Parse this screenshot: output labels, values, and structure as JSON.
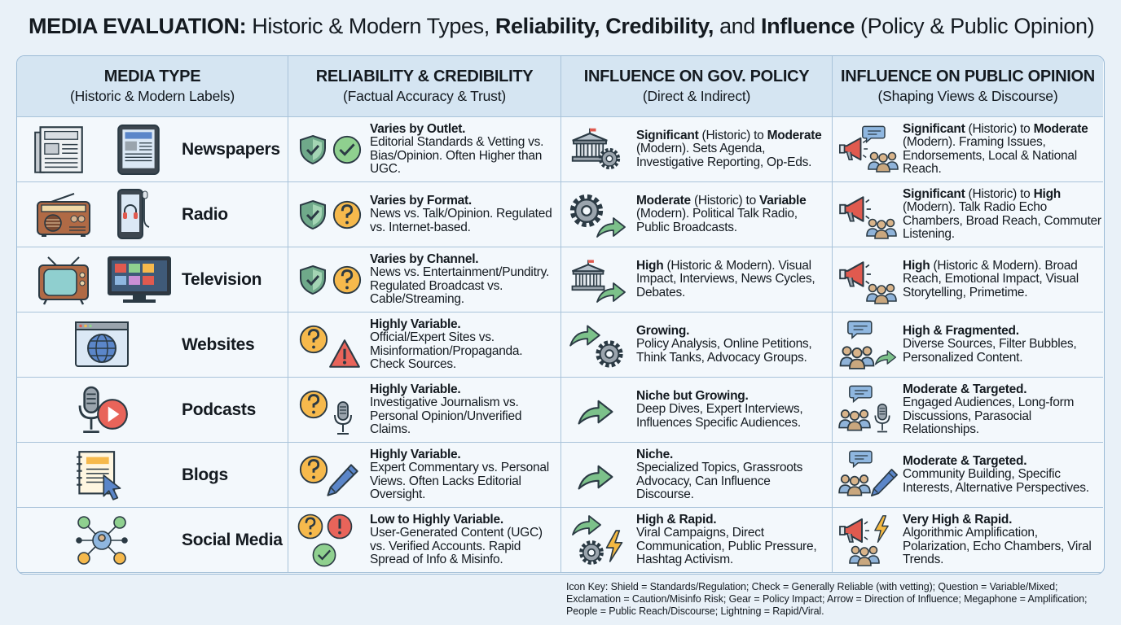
{
  "title": [
    {
      "text": "MEDIA EVALUATION:",
      "bold": true
    },
    {
      "text": " Historic & Modern Types, "
    },
    {
      "text": "Reliability, Credibility,",
      "bold": true
    },
    {
      "text": " and "
    },
    {
      "text": "Influence",
      "bold": true
    },
    {
      "text": " (Policy & Public Opinion)"
    }
  ],
  "table": {
    "header": [
      {
        "title": "MEDIA TYPE",
        "subtitle": "(Historic & Modern Labels)"
      },
      {
        "title": "RELIABILITY & CREDIBILITY",
        "subtitle": "(Factual Accuracy & Trust)"
      },
      {
        "title": "INFLUENCE ON GOV. POLICY",
        "subtitle": "(Direct & Indirect)"
      },
      {
        "title": "INFLUENCE ON PUBLIC OPINION",
        "subtitle": "(Shaping Views & Discourse)"
      }
    ],
    "rows": [
      {
        "media": "Newspapers",
        "reliability": [
          {
            "text": "Varies by Outlet.",
            "bold": true
          },
          {
            "text": " Editorial Standards & Vetting vs. Bias/Opinion. Often Higher than UGC."
          }
        ],
        "policy": [
          {
            "text": "Significant",
            "bold": true
          },
          {
            "text": " (Historic) to "
          },
          {
            "text": "Moderate",
            "bold": true
          },
          {
            "text": " (Modern). Sets Agenda, Investigative Reporting, Op-Eds."
          }
        ],
        "opinion": [
          {
            "text": "Significant",
            "bold": true
          },
          {
            "text": " (Historic) to "
          },
          {
            "text": "Moderate",
            "bold": true
          },
          {
            "text": " (Modern). Framing Issues, Endorsements, Local & National Reach."
          }
        ]
      },
      {
        "media": "Radio",
        "reliability": [
          {
            "text": "Varies by Format.",
            "bold": true
          },
          {
            "text": " News vs. Talk/Opinion. Regulated vs. Internet-based."
          }
        ],
        "policy": [
          {
            "text": "Moderate",
            "bold": true
          },
          {
            "text": " (Historic) to "
          },
          {
            "text": "Variable",
            "bold": true
          },
          {
            "text": " (Modern). Political Talk Radio, Public Broadcasts."
          }
        ],
        "opinion": [
          {
            "text": "Significant",
            "bold": true
          },
          {
            "text": " (Historic) to "
          },
          {
            "text": "High",
            "bold": true
          },
          {
            "text": " (Modern). Talk Radio Echo Chambers, Broad Reach, Commuter Listening."
          }
        ]
      },
      {
        "media": "Television",
        "reliability": [
          {
            "text": "Varies by Channel.",
            "bold": true
          },
          {
            "text": " News vs. Entertainment/Punditry. Regulated Broadcast vs. Cable/Streaming."
          }
        ],
        "policy": [
          {
            "text": "High",
            "bold": true
          },
          {
            "text": " (Historic & Modern). Visual Impact, Interviews, News Cycles, Debates."
          }
        ],
        "opinion": [
          {
            "text": "High",
            "bold": true
          },
          {
            "text": " (Historic & Modern). Broad Reach, Emotional Impact, Visual Storytelling, Primetime."
          }
        ]
      },
      {
        "media": "Websites",
        "reliability": [
          {
            "text": "Highly Variable.",
            "bold": true
          },
          {
            "text": " Official/Expert Sites vs. Misinformation/Propaganda. Check Sources."
          }
        ],
        "policy": [
          {
            "text": "Growing.",
            "bold": true
          },
          {
            "text": " Policy Analysis, Online Petitions, Think Tanks, Advocacy Groups."
          }
        ],
        "opinion": [
          {
            "text": "High & Fragmented.",
            "bold": true
          },
          {
            "text": " Diverse Sources, Filter Bubbles, Personalized Content."
          }
        ]
      },
      {
        "media": "Podcasts",
        "reliability": [
          {
            "text": "Highly Variable.",
            "bold": true
          },
          {
            "text": " Investigative Journalism vs. Personal Opinion/Unverified Claims."
          }
        ],
        "policy": [
          {
            "text": "Niche but Growing.",
            "bold": true
          },
          {
            "text": " Deep Dives, Expert Interviews, Influences Specific Audiences."
          }
        ],
        "opinion": [
          {
            "text": "Moderate & Targeted.",
            "bold": true
          },
          {
            "text": " Engaged Audiences, Long-form Discussions, Parasocial Relationships."
          }
        ]
      },
      {
        "media": "Blogs",
        "reliability": [
          {
            "text": "Highly Variable.",
            "bold": true
          },
          {
            "text": " Expert Commentary vs. Personal Views. Often Lacks Editorial Oversight."
          }
        ],
        "policy": [
          {
            "text": "Niche.",
            "bold": true
          },
          {
            "text": " Specialized Topics, Grassroots Advocacy, Can Influence Discourse."
          }
        ],
        "opinion": [
          {
            "text": "Moderate & Targeted.",
            "bold": true
          },
          {
            "text": " Community Building, Specific Interests, Alternative Perspectives."
          }
        ]
      },
      {
        "media": "Social Media",
        "reliability": [
          {
            "text": "Low to Highly Variable.",
            "bold": true
          },
          {
            "text": " User-Generated Content (UGC) vs. Verified Accounts. Rapid Spread of Info & Misinfo."
          }
        ],
        "policy": [
          {
            "text": "High & Rapid.",
            "bold": true
          },
          {
            "text": " Viral Campaigns, Direct Communication, Public Pressure, Hashtag Activism."
          }
        ],
        "opinion": [
          {
            "text": "Very High & Rapid.",
            "bold": true
          },
          {
            "text": " Algorithmic Amplification, Polarization, Echo Chambers, Viral Trends."
          }
        ]
      }
    ]
  },
  "icon_key": "Icon Key: Shield = Standards/Regulation; Check = Generally Reliable (with vetting); Question = Variable/Mixed; Exclamation = Caution/Misinfo Risk; Gear = Policy Impact; Arrow = Direction of Influence; Megaphone = Amplification; People = Public Reach/Discourse; Lightning = Rapid/Viral."
}
